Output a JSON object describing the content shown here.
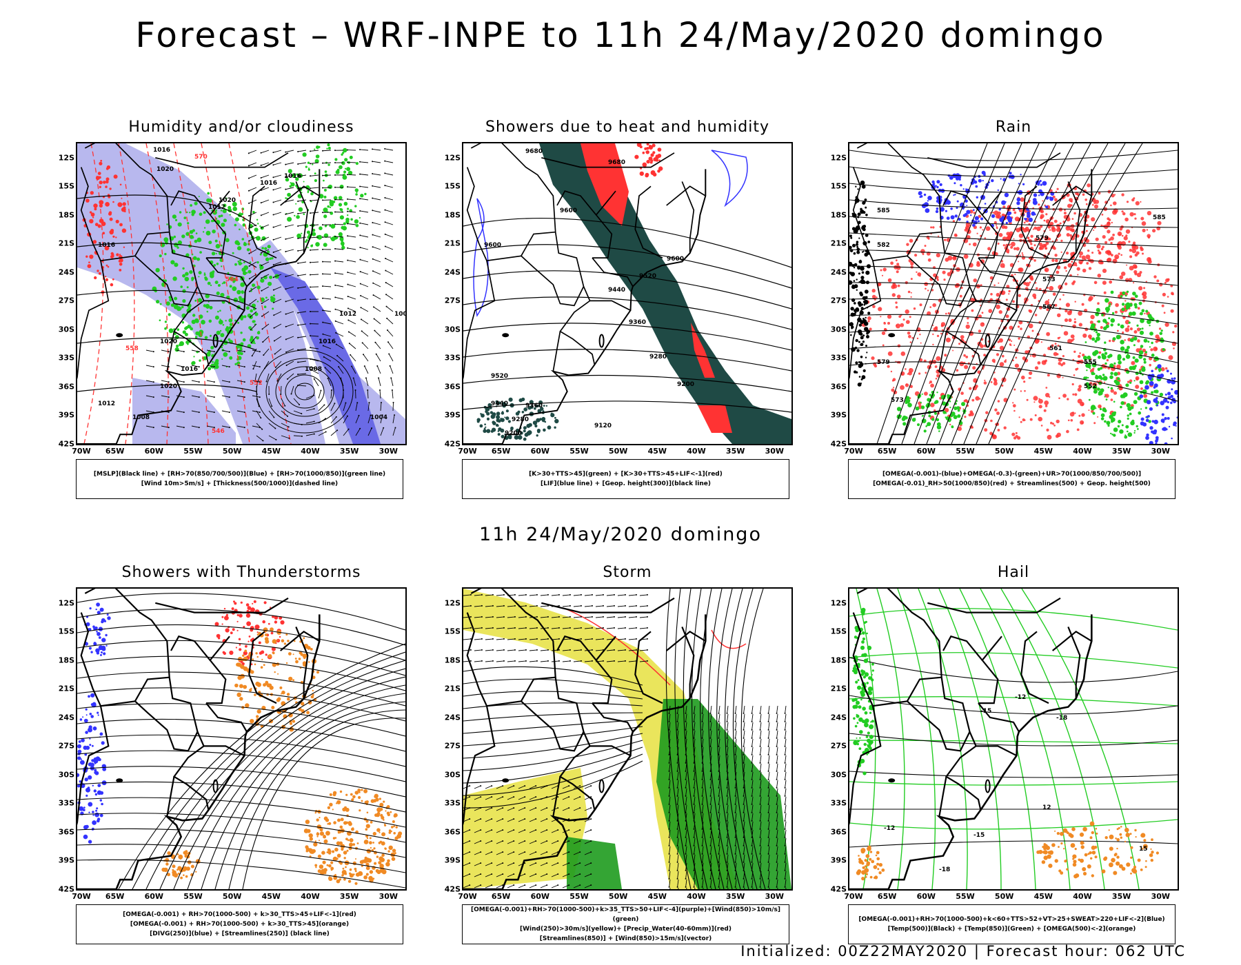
{
  "header": {
    "title": "Forecast – WRF-INPE to 11h 24/May/2020 domingo",
    "middle_title": "11h 24/May/2020 domingo",
    "footer": "Initialized: 00Z22MAY2020 | Forecast hour: 062 UTC"
  },
  "axes": {
    "latitudes": [
      "12S",
      "15S",
      "18S",
      "21S",
      "24S",
      "27S",
      "30S",
      "33S",
      "36S",
      "39S",
      "42S"
    ],
    "longitudes": [
      "70W",
      "65W",
      "60W",
      "55W",
      "50W",
      "45W",
      "40W",
      "35W",
      "30W"
    ]
  },
  "panels": [
    {
      "title": "Humidity and/or cloudiness",
      "legend": [
        "[MSLP](Black line) + [RH>70(850/700/500)](Blue) + [RH>70(1000/850)](green line)",
        "[Wind 10m>5m/s] + [Thickness(500/1000)](dashed line)"
      ],
      "contour_labels": [
        "1016",
        "1020",
        "1016",
        "1016",
        "1020",
        "1012",
        "1016",
        "1020",
        "1016",
        "1020",
        "1008",
        "1012",
        "1004",
        "1008",
        "1016",
        "1012",
        "1004",
        "570",
        "564",
        "558",
        "552",
        "546"
      ]
    },
    {
      "title": "Showers due to heat and humidity",
      "legend": [
        "[K>30+TTS>45](green) + [K>30+TTS>45+LIF<-1](red)",
        "[LIF](blue line) + [Geop. height(300)](black line)"
      ],
      "contour_labels": [
        "9680",
        "9680",
        "9600",
        "9600",
        "9600",
        "9520",
        "9440",
        "9360",
        "9280",
        "9200",
        "9120",
        "9520",
        "9440",
        "9360",
        "9280",
        "9200"
      ]
    },
    {
      "title": "Rain",
      "legend": [
        "[OMEGA(-0.001)-(blue)+OMEGA(-0.3)-(green)+UR>70(1000/850/700/500)]",
        "[OMEGA(-0.01)_RH>50(1000/850)(red) + Streamlines(500) + Geop. height(500)"
      ],
      "contour_labels": [
        "585",
        "579",
        "573",
        "567",
        "561",
        "555",
        "552",
        "573",
        "579",
        "582",
        "585"
      ]
    },
    {
      "title": "Showers with Thunderstorms",
      "legend": [
        "[OMEGA(-0.001) + RH>70(1000-500) + k>30_TTS>45+LIF<-1](red)",
        "[OMEGA(-0.001) + RH>70(1000-500) + k>30_TTS>45](orange)",
        "[DIVG(250)](blue) + [Streamlines(250)] (black line)"
      ]
    },
    {
      "title": "Storm",
      "legend": [
        "[OMEGA(-0.001)+RH>70(1000-500)+k>35_TTS>50+LIF<-4](purple)+[Wind(850)>10m/s](green)",
        "[Wind(250)>30m/s](yellow)+ [Precip_Water(40-60mm)](red)",
        "[Streamlines(850)] + [Wind(850)>15m/s](vector)"
      ]
    },
    {
      "title": "Hail",
      "legend": [
        "[OMEGA(-0.001)+RH>70(1000-500)+k<60+TTS>52+VT>25+SWEAT>220+LIF<-2](Blue)",
        "[Temp(500)](Black) + [Temp(850)](Green) + [OMEGA(500)<-2](orange)"
      ],
      "contour_labels": [
        "-12",
        "-15",
        "-18",
        "-12",
        "-15",
        "-18",
        "12",
        "15"
      ]
    }
  ],
  "colors": {
    "black": "#000000",
    "blue": "#3333ff",
    "lightblue": "#b8b8ee",
    "green": "#22cc22",
    "red": "#ff3333",
    "darkteal": "#1f4a45",
    "orange": "#f08a24",
    "yellow": "#e6e040",
    "darkgreen": "#1e9b1e"
  }
}
